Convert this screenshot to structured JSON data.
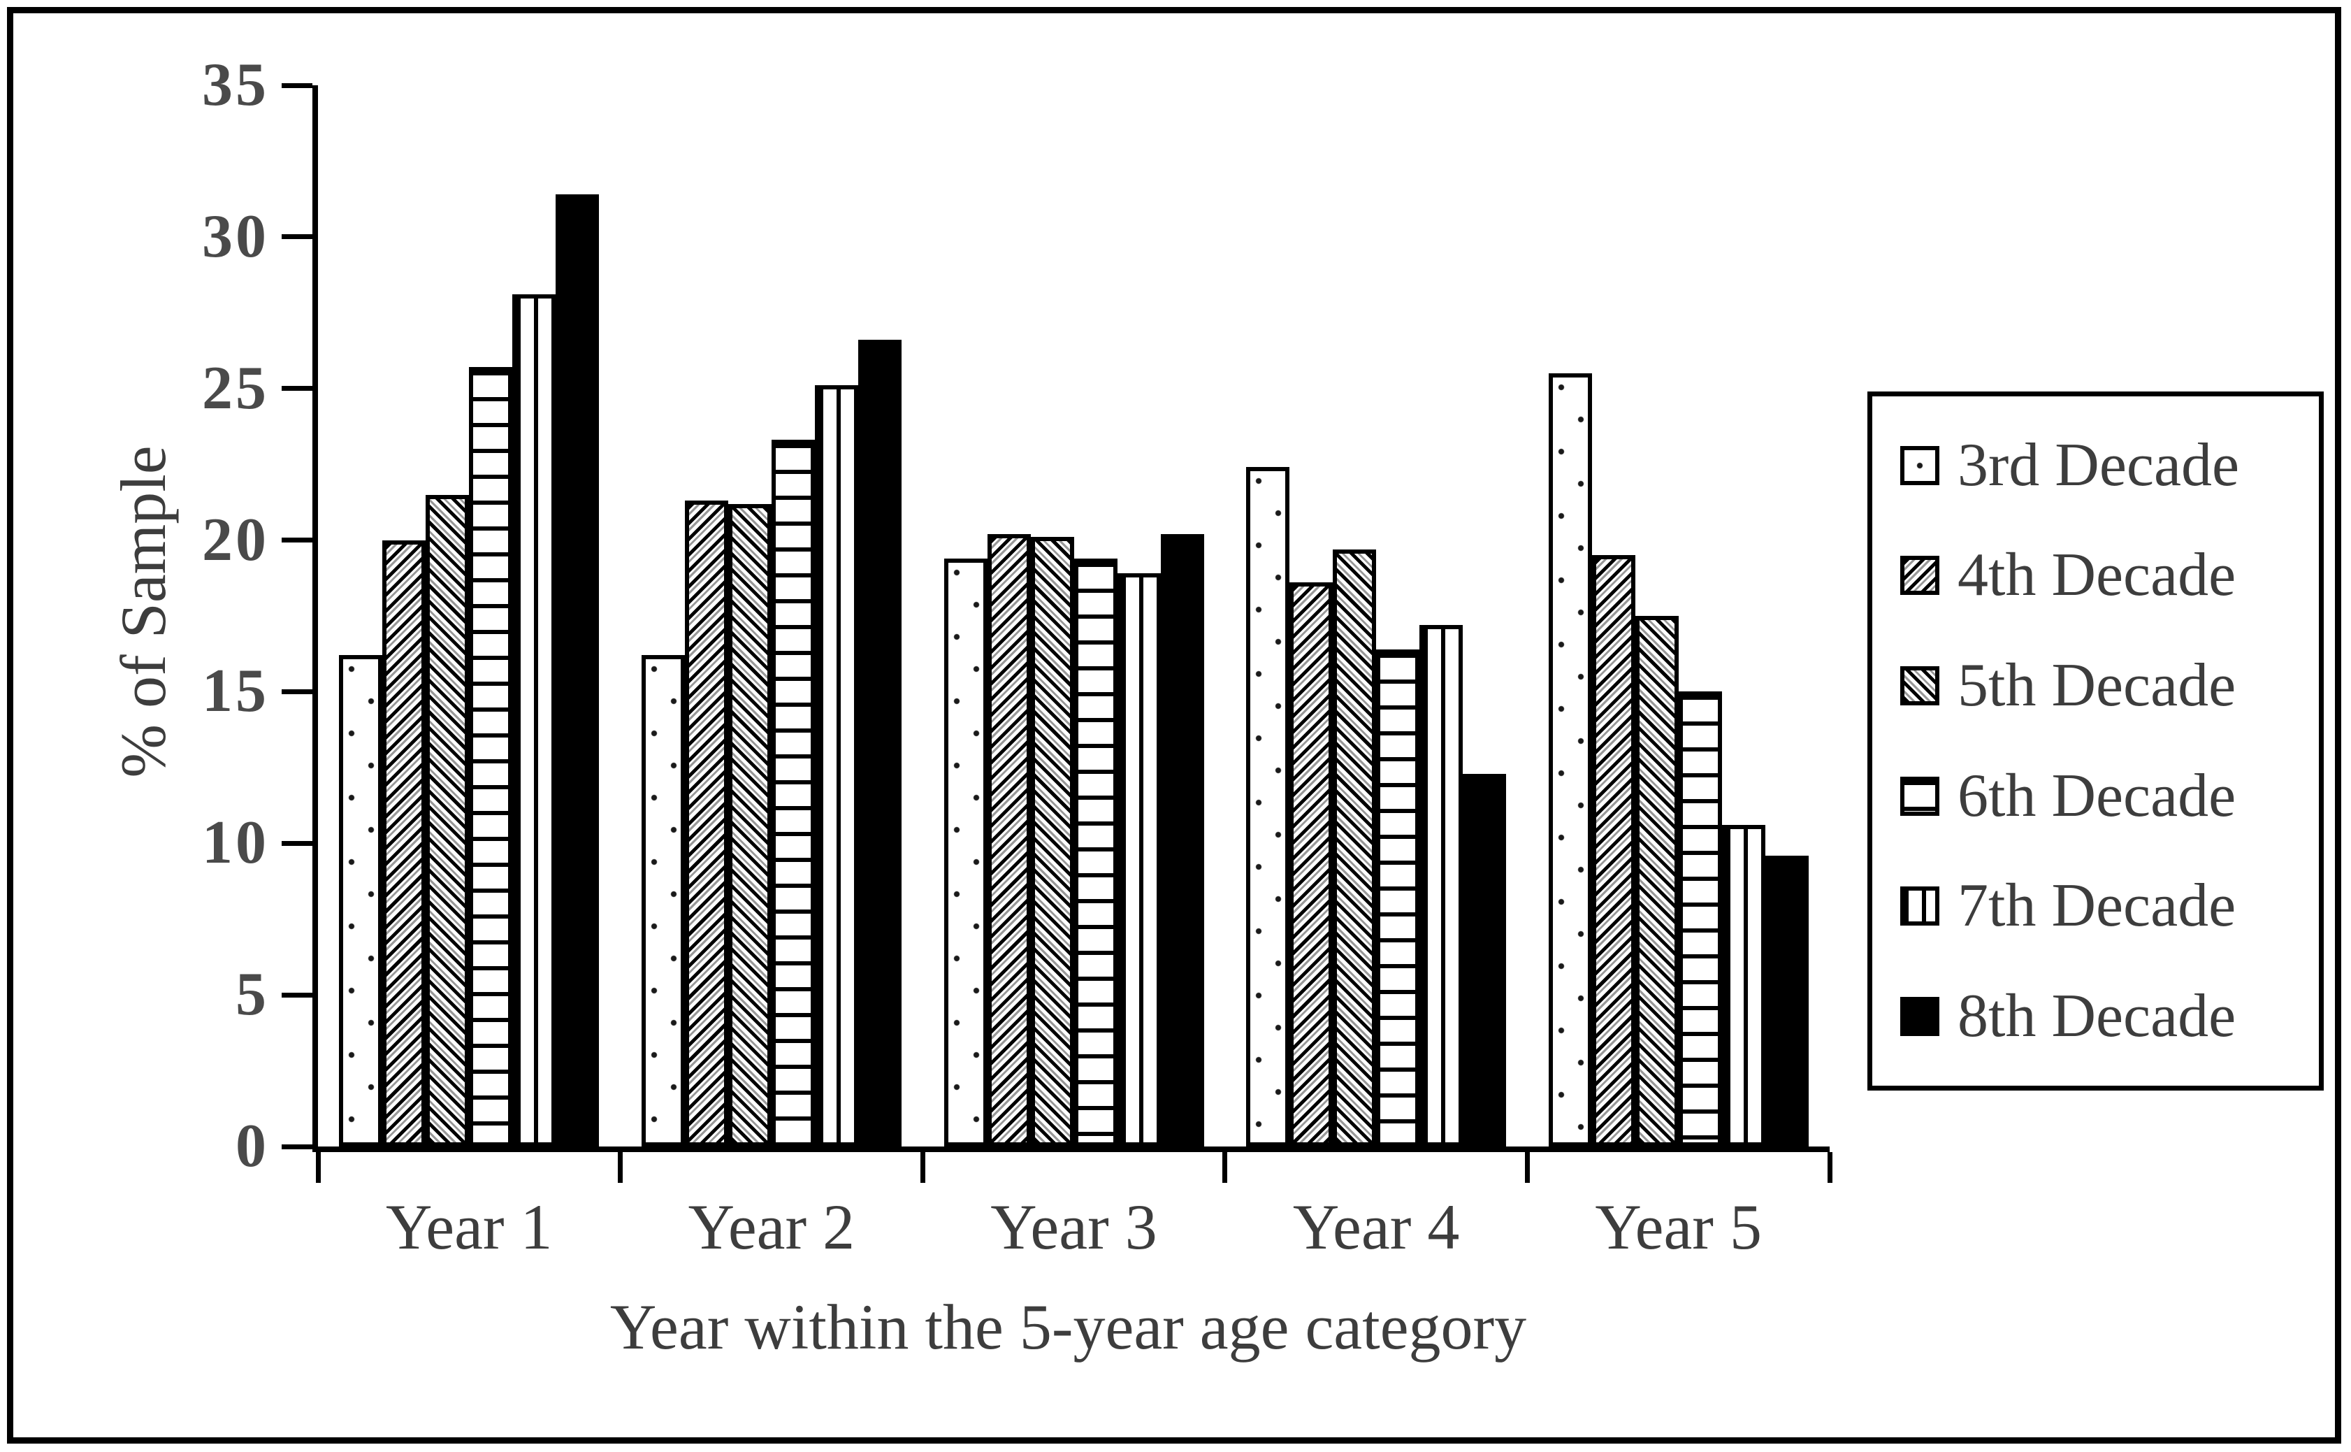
{
  "figure": {
    "y_axis_title": "% of Sample",
    "x_axis_title": "Year within the 5-year age category"
  },
  "legend": {
    "items": [
      {
        "label": "3rd Decade",
        "swatch": "dots"
      },
      {
        "label": "4th Decade",
        "swatch": "diagonal-up"
      },
      {
        "label": "5th Decade",
        "swatch": "diagonal-down"
      },
      {
        "label": "6th Decade",
        "swatch": "horizontal-lines"
      },
      {
        "label": "7th Decade",
        "swatch": "vertical-lines"
      },
      {
        "label": "8th Decade",
        "swatch": "solid-black"
      }
    ]
  },
  "colors": {
    "ink": "#000000",
    "text": "#3d3d3d",
    "background": "#ffffff"
  },
  "chart_data": {
    "type": "bar",
    "title": "",
    "xlabel": "Year within the 5-year age category",
    "ylabel": "% of Sample",
    "categories": [
      "Year 1",
      "Year 2",
      "Year 3",
      "Year 4",
      "Year 5"
    ],
    "ylim": [
      0,
      35
    ],
    "yticks": [
      0,
      5,
      10,
      15,
      20,
      25,
      30,
      35
    ],
    "grid": false,
    "legend_position": "right",
    "series": [
      {
        "name": "3rd Decade",
        "pattern": "dots",
        "values": [
          16.2,
          16.2,
          19.4,
          22.4,
          25.5
        ]
      },
      {
        "name": "4th Decade",
        "pattern": "diagonal-up",
        "values": [
          20.0,
          21.3,
          20.2,
          18.6,
          19.5
        ]
      },
      {
        "name": "5th Decade",
        "pattern": "diagonal-down",
        "values": [
          21.5,
          21.2,
          20.1,
          19.7,
          17.5
        ]
      },
      {
        "name": "6th Decade",
        "pattern": "horizontal-lines",
        "values": [
          25.7,
          23.3,
          19.4,
          16.4,
          15.0
        ]
      },
      {
        "name": "7th Decade",
        "pattern": "vertical-lines",
        "values": [
          28.1,
          25.1,
          18.9,
          17.2,
          10.6
        ]
      },
      {
        "name": "8th Decade",
        "pattern": "solid-black",
        "values": [
          31.4,
          26.6,
          20.2,
          12.3,
          9.6
        ]
      }
    ]
  }
}
